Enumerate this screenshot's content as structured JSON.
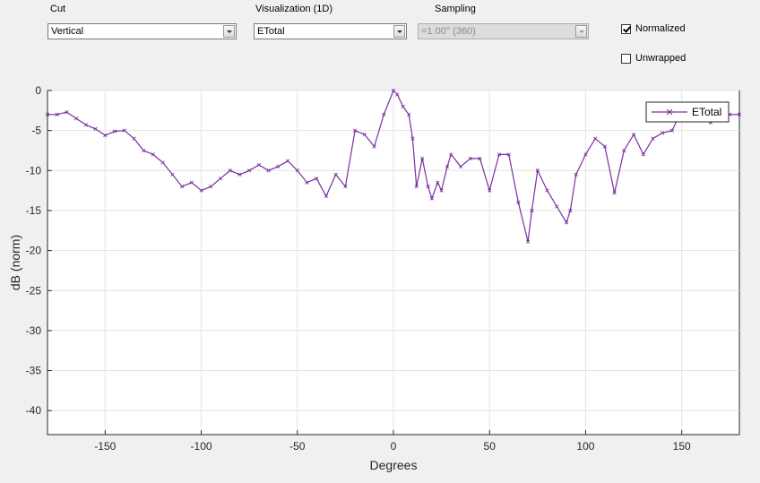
{
  "controls": {
    "cut": {
      "label": "Cut",
      "value": "Vertical"
    },
    "visualization": {
      "label": "Visualization (1D)",
      "value": "ETotal"
    },
    "sampling": {
      "label": "Sampling",
      "value": "=1.00° (360)"
    },
    "normalized": {
      "label": "Normalized",
      "checked": true
    },
    "unwrapped": {
      "label": "Unwrapped",
      "checked": false
    }
  },
  "chart_data": {
    "type": "line",
    "xlabel": "Degrees",
    "ylabel": "dB (norm)",
    "xlim": [
      -180,
      180
    ],
    "ylim": [
      -43,
      0
    ],
    "xticks": [
      -150,
      -100,
      -50,
      0,
      50,
      100,
      150
    ],
    "yticks": [
      0,
      -5,
      -10,
      -15,
      -20,
      -25,
      -30,
      -35,
      -40
    ],
    "grid": true,
    "legend_position": "top-right",
    "series": [
      {
        "name": "ETotal",
        "color": "#7b2fa0",
        "x": [
          -180,
          -175,
          -170,
          -165,
          -160,
          -155,
          -150,
          -145,
          -140,
          -135,
          -130,
          -125,
          -120,
          -115,
          -110,
          -105,
          -100,
          -95,
          -90,
          -85,
          -80,
          -75,
          -70,
          -65,
          -60,
          -55,
          -50,
          -45,
          -40,
          -35,
          -30,
          -25,
          -20,
          -15,
          -10,
          -5,
          0,
          2,
          5,
          8,
          10,
          12,
          15,
          18,
          20,
          23,
          25,
          28,
          30,
          35,
          40,
          45,
          50,
          55,
          60,
          65,
          70,
          72,
          75,
          80,
          85,
          90,
          92,
          95,
          100,
          105,
          110,
          115,
          120,
          125,
          130,
          135,
          140,
          145,
          150,
          155,
          160,
          165,
          170,
          175,
          180
        ],
        "y": [
          -3.0,
          -3.0,
          -2.7,
          -3.5,
          -4.3,
          -4.8,
          -5.6,
          -5.1,
          -5.0,
          -6.0,
          -7.5,
          -8.0,
          -9.0,
          -10.5,
          -12.0,
          -11.5,
          -12.5,
          -12.0,
          -11.0,
          -10.0,
          -10.5,
          -10.0,
          -9.3,
          -10.0,
          -9.5,
          -8.8,
          -10.0,
          -11.5,
          -11.0,
          -13.2,
          -10.5,
          -12.0,
          -5.0,
          -5.5,
          -7.0,
          -3.0,
          0.0,
          -0.5,
          -2.0,
          -3.0,
          -6.0,
          -12.0,
          -8.5,
          -12.0,
          -13.5,
          -11.5,
          -12.5,
          -9.5,
          -8.0,
          -9.5,
          -8.5,
          -8.5,
          -12.5,
          -8.0,
          -8.0,
          -14.0,
          -18.9,
          -15.0,
          -10.0,
          -12.5,
          -14.5,
          -16.5,
          -15.0,
          -10.5,
          -8.0,
          -6.0,
          -7.0,
          -12.8,
          -7.5,
          -5.5,
          -8.0,
          -6.0,
          -5.3,
          -5.0,
          -2.5,
          -3.0,
          -3.2,
          -4.0,
          -3.5,
          -3.0,
          -3.0
        ]
      }
    ]
  }
}
